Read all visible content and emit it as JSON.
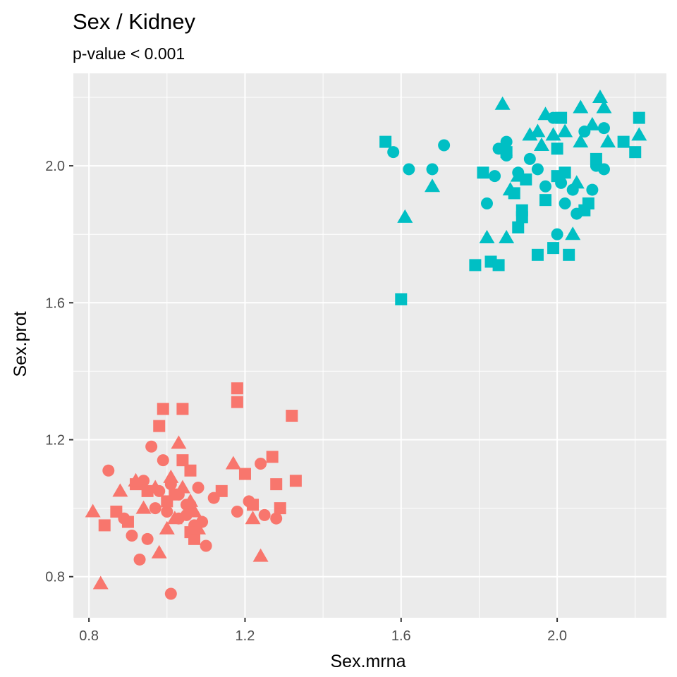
{
  "chart_data": {
    "type": "scatter",
    "title": "Sex / Kidney",
    "subtitle": "p-value < 0.001",
    "xlabel": "Sex.mrna",
    "ylabel": "Sex.prot",
    "xlim": [
      0.76,
      2.28
    ],
    "ylim": [
      0.68,
      2.27
    ],
    "x_ticks": [
      0.8,
      1.2,
      1.6,
      2.0
    ],
    "x_tick_labels": [
      "0.8",
      "1.2",
      "1.6",
      "2.0"
    ],
    "y_ticks": [
      0.8,
      1.2,
      1.6,
      2.0
    ],
    "y_tick_labels": [
      "0.8",
      "1.2",
      "1.6",
      "2.0"
    ],
    "grid": true,
    "legend": "none",
    "colors": {
      "panel": "#ebebeb",
      "grid": "#ffffff",
      "group_low": "#f8766d",
      "group_high": "#00bfc4"
    },
    "series": [
      {
        "color": "#f8766d",
        "shapes": {
          "circle": [
            [
              0.85,
              1.11
            ],
            [
              0.96,
              1.18
            ],
            [
              0.99,
              1.14
            ],
            [
              0.94,
              1.08
            ],
            [
              0.98,
              1.05
            ],
            [
              1.01,
              1.07
            ],
            [
              1.03,
              1.04
            ],
            [
              1.05,
              1.01
            ],
            [
              0.97,
              1.0
            ],
            [
              1.0,
              0.99
            ],
            [
              0.91,
              0.92
            ],
            [
              0.95,
              0.91
            ],
            [
              0.93,
              0.85
            ],
            [
              1.01,
              0.75
            ],
            [
              1.03,
              0.97
            ],
            [
              1.06,
              1.01
            ],
            [
              1.08,
              1.06
            ],
            [
              1.1,
              0.89
            ],
            [
              1.12,
              1.03
            ],
            [
              1.07,
              0.95
            ],
            [
              1.09,
              0.96
            ],
            [
              1.18,
              0.99
            ],
            [
              1.21,
              1.02
            ],
            [
              1.25,
              0.98
            ],
            [
              1.28,
              0.97
            ],
            [
              1.24,
              1.13
            ],
            [
              0.89,
              0.97
            ],
            [
              1.05,
              0.98
            ]
          ],
          "square": [
            [
              0.84,
              0.95
            ],
            [
              0.87,
              0.99
            ],
            [
              0.9,
              0.96
            ],
            [
              0.92,
              1.07
            ],
            [
              0.95,
              1.05
            ],
            [
              0.99,
              1.29
            ],
            [
              0.98,
              1.24
            ],
            [
              1.04,
              1.29
            ],
            [
              1.04,
              1.14
            ],
            [
              1.06,
              1.11
            ],
            [
              1.02,
              1.04
            ],
            [
              1.06,
              0.93
            ],
            [
              1.07,
              0.91
            ],
            [
              1.14,
              1.05
            ],
            [
              1.18,
              1.35
            ],
            [
              1.18,
              1.31
            ],
            [
              1.2,
              1.1
            ],
            [
              1.22,
              1.01
            ],
            [
              1.27,
              1.15
            ],
            [
              1.29,
              1.0
            ],
            [
              1.32,
              1.27
            ],
            [
              1.33,
              1.08
            ],
            [
              1.28,
              1.07
            ],
            [
              1.0,
              1.02
            ]
          ],
          "triangle": [
            [
              0.81,
              0.99
            ],
            [
              0.83,
              0.78
            ],
            [
              0.88,
              1.05
            ],
            [
              0.92,
              1.08
            ],
            [
              0.94,
              1.0
            ],
            [
              0.97,
              1.06
            ],
            [
              0.98,
              0.87
            ],
            [
              1.0,
              0.94
            ],
            [
              1.02,
              0.97
            ],
            [
              1.03,
              1.19
            ],
            [
              1.04,
              1.06
            ],
            [
              1.06,
              1.02
            ],
            [
              1.07,
              0.99
            ],
            [
              1.08,
              0.94
            ],
            [
              1.17,
              1.13
            ],
            [
              1.22,
              0.97
            ],
            [
              1.24,
              0.86
            ],
            [
              1.01,
              1.09
            ]
          ]
        }
      },
      {
        "color": "#00bfc4",
        "shapes": {
          "circle": [
            [
              1.58,
              2.04
            ],
            [
              1.62,
              1.99
            ],
            [
              1.68,
              1.99
            ],
            [
              1.71,
              2.06
            ],
            [
              1.82,
              1.89
            ],
            [
              1.84,
              1.97
            ],
            [
              1.85,
              2.05
            ],
            [
              1.87,
              2.03
            ],
            [
              1.87,
              2.07
            ],
            [
              1.9,
              1.98
            ],
            [
              1.93,
              2.02
            ],
            [
              1.95,
              1.99
            ],
            [
              1.99,
              2.14
            ],
            [
              2.0,
              1.8
            ],
            [
              2.01,
              1.95
            ],
            [
              2.02,
              1.89
            ],
            [
              2.05,
              1.86
            ],
            [
              2.07,
              2.1
            ],
            [
              2.09,
              1.93
            ],
            [
              2.1,
              2.0
            ],
            [
              2.12,
              2.11
            ],
            [
              2.12,
              1.99
            ],
            [
              1.97,
              1.94
            ],
            [
              2.04,
              1.93
            ]
          ],
          "square": [
            [
              1.56,
              2.07
            ],
            [
              1.6,
              1.61
            ],
            [
              1.79,
              1.71
            ],
            [
              1.81,
              1.98
            ],
            [
              1.83,
              1.72
            ],
            [
              1.85,
              1.71
            ],
            [
              1.87,
              2.04
            ],
            [
              1.89,
              1.92
            ],
            [
              1.9,
              1.82
            ],
            [
              1.91,
              1.85
            ],
            [
              1.91,
              1.87
            ],
            [
              1.92,
              1.96
            ],
            [
              1.95,
              1.74
            ],
            [
              1.97,
              1.9
            ],
            [
              1.99,
              1.76
            ],
            [
              2.0,
              2.05
            ],
            [
              2.0,
              1.97
            ],
            [
              2.01,
              2.14
            ],
            [
              2.03,
              1.74
            ],
            [
              2.07,
              1.87
            ],
            [
              2.08,
              1.89
            ],
            [
              2.1,
              2.02
            ],
            [
              2.17,
              2.07
            ],
            [
              2.2,
              2.04
            ],
            [
              2.21,
              2.14
            ],
            [
              2.02,
              1.98
            ]
          ],
          "triangle": [
            [
              1.61,
              1.85
            ],
            [
              1.68,
              1.94
            ],
            [
              1.82,
              1.79
            ],
            [
              1.86,
              2.18
            ],
            [
              1.87,
              1.79
            ],
            [
              1.88,
              1.93
            ],
            [
              1.9,
              1.97
            ],
            [
              1.93,
              2.09
            ],
            [
              1.95,
              2.1
            ],
            [
              1.96,
              2.06
            ],
            [
              1.97,
              2.15
            ],
            [
              1.99,
              2.09
            ],
            [
              2.02,
              2.1
            ],
            [
              2.04,
              1.8
            ],
            [
              2.06,
              2.17
            ],
            [
              2.06,
              2.07
            ],
            [
              2.09,
              2.12
            ],
            [
              2.11,
              2.2
            ],
            [
              2.12,
              2.17
            ],
            [
              2.13,
              2.07
            ],
            [
              2.21,
              2.09
            ],
            [
              2.05,
              1.95
            ]
          ]
        }
      }
    ]
  }
}
